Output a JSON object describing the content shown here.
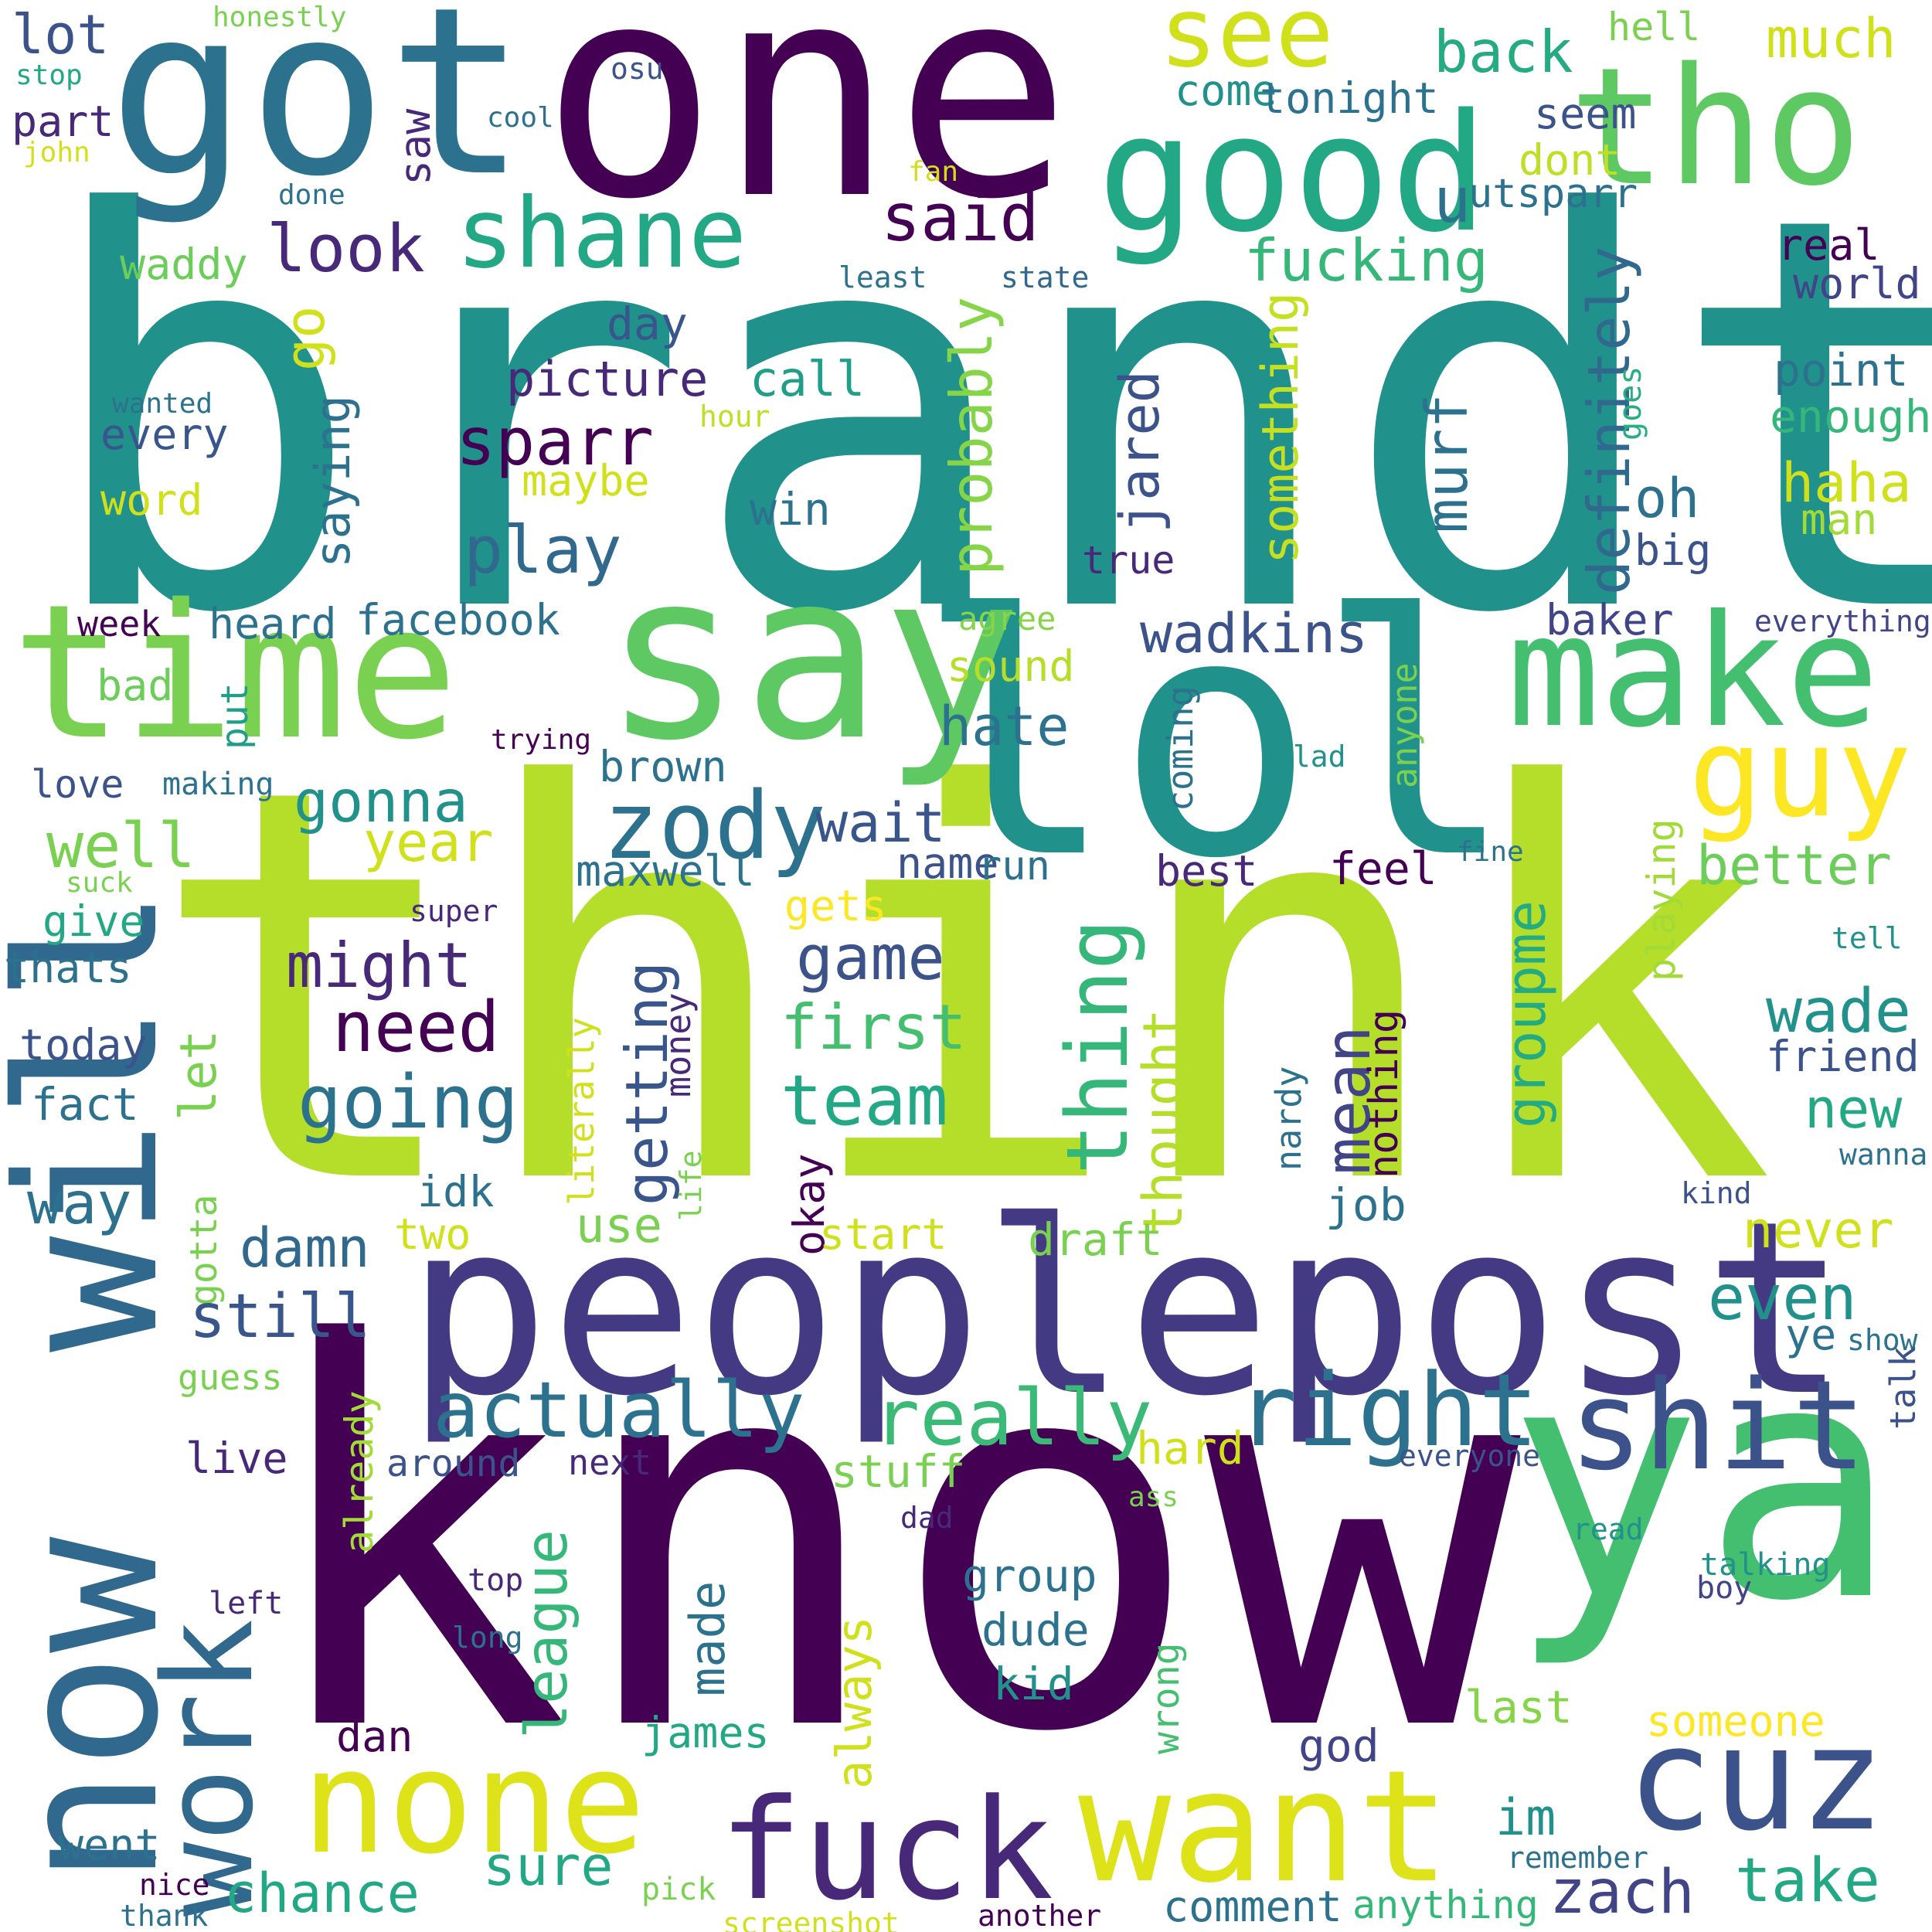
{
  "words": [
    {
      "text": "brandt",
      "color": "#21918c"
    },
    {
      "text": "think",
      "color": "#b5de2b"
    },
    {
      "text": "know",
      "color": "#440154"
    },
    {
      "text": "peoplepost",
      "color": "#443a83"
    },
    {
      "text": "lol",
      "color": "#21918c"
    },
    {
      "text": "one",
      "color": "#440154"
    },
    {
      "text": "got",
      "color": "#2c728e"
    },
    {
      "text": "ya",
      "color": "#44bf70"
    },
    {
      "text": "now",
      "color": "#31688e"
    },
    {
      "text": "will",
      "color": "#31688e"
    },
    {
      "text": "say",
      "color": "#5ec962"
    },
    {
      "text": "time",
      "color": "#7ad151"
    },
    {
      "text": "make",
      "color": "#44bf70"
    },
    {
      "text": "tho",
      "color": "#5ec962"
    },
    {
      "text": "good",
      "color": "#22a884"
    },
    {
      "text": "none",
      "color": "#dde318"
    },
    {
      "text": "want",
      "color": "#dde318"
    },
    {
      "text": "fuck",
      "color": "#482878"
    },
    {
      "text": "cuz",
      "color": "#3b528b"
    },
    {
      "text": "shit",
      "color": "#3b528b"
    },
    {
      "text": "work",
      "color": "#31688e"
    },
    {
      "text": "right",
      "color": "#2c728e"
    },
    {
      "text": "guy",
      "color": "#fde725"
    },
    {
      "text": "shane",
      "color": "#22a884"
    },
    {
      "text": "see",
      "color": "#d0e11c"
    },
    {
      "text": "zody",
      "color": "#2c728e"
    },
    {
      "text": "actually",
      "color": "#2c728e"
    },
    {
      "text": "really",
      "color": "#3aba76"
    },
    {
      "text": "said",
      "color": "#440154"
    },
    {
      "text": "look",
      "color": "#482878"
    },
    {
      "text": "sparr",
      "color": "#440154"
    },
    {
      "text": "play",
      "color": "#31688e"
    },
    {
      "text": "back",
      "color": "#25ab82"
    },
    {
      "text": "much",
      "color": "#d0e11c"
    },
    {
      "text": "fucking",
      "color": "#35b779"
    },
    {
      "text": "come",
      "color": "#21918c"
    },
    {
      "text": "tonight",
      "color": "#2c728e"
    },
    {
      "text": "seem",
      "color": "#3b528b"
    },
    {
      "text": "hell",
      "color": "#7ad151"
    },
    {
      "text": "u",
      "color": "#2c728e"
    },
    {
      "text": "utsparr",
      "color": "#2c728e"
    },
    {
      "text": "dont",
      "color": "#bddf26"
    },
    {
      "text": "real",
      "color": "#440154"
    },
    {
      "text": "world",
      "color": "#414487"
    },
    {
      "text": "point",
      "color": "#2c728e"
    },
    {
      "text": "enough",
      "color": "#35b779"
    },
    {
      "text": "haha",
      "color": "#d0e11c"
    },
    {
      "text": "man",
      "color": "#a2da37"
    },
    {
      "text": "oh",
      "color": "#2c728e"
    },
    {
      "text": "big",
      "color": "#3b528b"
    },
    {
      "text": "definitely",
      "color": "#31688e"
    },
    {
      "text": "goes",
      "color": "#28ae80"
    },
    {
      "text": "murf",
      "color": "#2c728e"
    },
    {
      "text": "something",
      "color": "#c5e021"
    },
    {
      "text": "jared",
      "color": "#3b528b"
    },
    {
      "text": "probably",
      "color": "#86d549"
    },
    {
      "text": "picture",
      "color": "#482878"
    },
    {
      "text": "call",
      "color": "#1f9e89"
    },
    {
      "text": "day",
      "color": "#39568c"
    },
    {
      "text": "go",
      "color": "#d0e11c"
    },
    {
      "text": "saying",
      "color": "#2c728e"
    },
    {
      "text": "maybe",
      "color": "#d0e11c"
    },
    {
      "text": "win",
      "color": "#2c728e"
    },
    {
      "text": "true",
      "color": "#482878"
    },
    {
      "text": "hour",
      "color": "#bddf26"
    },
    {
      "text": "every",
      "color": "#39568c"
    },
    {
      "text": "wanted",
      "color": "#2c728e"
    },
    {
      "text": "word",
      "color": "#d0e11c"
    },
    {
      "text": "waddy",
      "color": "#6ccd5a"
    },
    {
      "text": "least",
      "color": "#2c728e"
    },
    {
      "text": "state",
      "color": "#31688e"
    },
    {
      "text": "lot",
      "color": "#3b528b"
    },
    {
      "text": "stop",
      "color": "#22a884"
    },
    {
      "text": "honestly",
      "color": "#7ad151"
    },
    {
      "text": "osu",
      "color": "#3b528b"
    },
    {
      "text": "cool",
      "color": "#2c728e"
    },
    {
      "text": "part",
      "color": "#482878"
    },
    {
      "text": "john",
      "color": "#d0e11c"
    },
    {
      "text": "saw",
      "color": "#482878"
    },
    {
      "text": "fan",
      "color": "#d0e11c"
    },
    {
      "text": "done",
      "color": "#2c728e"
    },
    {
      "text": "week",
      "color": "#440154"
    },
    {
      "text": "heard",
      "color": "#2c728e"
    },
    {
      "text": "facebook",
      "color": "#2c728e"
    },
    {
      "text": "bad",
      "color": "#6ccd5a"
    },
    {
      "text": "put",
      "color": "#1f9e89"
    },
    {
      "text": "trying",
      "color": "#440154"
    },
    {
      "text": "love",
      "color": "#3b528b"
    },
    {
      "text": "making",
      "color": "#2c728e"
    },
    {
      "text": "gonna",
      "color": "#21918c"
    },
    {
      "text": "well",
      "color": "#7ad151"
    },
    {
      "text": "year",
      "color": "#d0e11c"
    },
    {
      "text": "brown",
      "color": "#2c728e"
    },
    {
      "text": "wait",
      "color": "#39568c"
    },
    {
      "text": "name",
      "color": "#3b528b"
    },
    {
      "text": "run",
      "color": "#2c728e"
    },
    {
      "text": "maxwell",
      "color": "#2c728e"
    },
    {
      "text": "gets",
      "color": "#fde725"
    },
    {
      "text": "hate",
      "color": "#2c728e"
    },
    {
      "text": "sound",
      "color": "#b5de2b"
    },
    {
      "text": "agree",
      "color": "#86d549"
    },
    {
      "text": "wadkins",
      "color": "#3b528b"
    },
    {
      "text": "coming",
      "color": "#2c728e"
    },
    {
      "text": "anyone",
      "color": "#7ad151"
    },
    {
      "text": "best",
      "color": "#482878"
    },
    {
      "text": "feel",
      "color": "#440154"
    },
    {
      "text": "glad",
      "color": "#21918c"
    },
    {
      "text": "baker",
      "color": "#414487"
    },
    {
      "text": "everything",
      "color": "#414487"
    },
    {
      "text": "better",
      "color": "#6ccd5a"
    },
    {
      "text": "fine",
      "color": "#2c728e"
    },
    {
      "text": "playing",
      "color": "#a2da37"
    },
    {
      "text": "tell",
      "color": "#21918c"
    },
    {
      "text": "give",
      "color": "#22a884"
    },
    {
      "text": "suck",
      "color": "#7ad151"
    },
    {
      "text": "super",
      "color": "#482878"
    },
    {
      "text": "thats",
      "color": "#2c728e"
    },
    {
      "text": "today",
      "color": "#3b528b"
    },
    {
      "text": "fact",
      "color": "#2c728e"
    },
    {
      "text": "let",
      "color": "#7ad151"
    },
    {
      "text": "might",
      "color": "#482878"
    },
    {
      "text": "need",
      "color": "#440154"
    },
    {
      "text": "going",
      "color": "#2c728e"
    },
    {
      "text": "game",
      "color": "#3b528b"
    },
    {
      "text": "first",
      "color": "#44bf70"
    },
    {
      "text": "team",
      "color": "#22a884"
    },
    {
      "text": "thing",
      "color": "#35b779"
    },
    {
      "text": "thought",
      "color": "#b5de2b"
    },
    {
      "text": "mean",
      "color": "#414487"
    },
    {
      "text": "groupme",
      "color": "#25ab82"
    },
    {
      "text": "wade",
      "color": "#21918c"
    },
    {
      "text": "friend",
      "color": "#3b528b"
    },
    {
      "text": "new",
      "color": "#22a884"
    },
    {
      "text": "wanna",
      "color": "#2c728e"
    },
    {
      "text": "kind",
      "color": "#3b528b"
    },
    {
      "text": "way",
      "color": "#2c728e"
    },
    {
      "text": "gotta",
      "color": "#7ad151"
    },
    {
      "text": "idk",
      "color": "#2c728e"
    },
    {
      "text": "two",
      "color": "#d0e11c"
    },
    {
      "text": "damn",
      "color": "#31688e"
    },
    {
      "text": "still",
      "color": "#39568c"
    },
    {
      "text": "getting",
      "color": "#39568c"
    },
    {
      "text": "literally",
      "color": "#d0e11c"
    },
    {
      "text": "money",
      "color": "#482878"
    },
    {
      "text": "life",
      "color": "#7ad151"
    },
    {
      "text": "use",
      "color": "#7ad151"
    },
    {
      "text": "okay",
      "color": "#440154"
    },
    {
      "text": "start",
      "color": "#d0e11c"
    },
    {
      "text": "draft",
      "color": "#7ad151"
    },
    {
      "text": "nardy",
      "color": "#2c728e"
    },
    {
      "text": "nothing",
      "color": "#440154"
    },
    {
      "text": "job",
      "color": "#2c728e"
    },
    {
      "text": "never",
      "color": "#d0e11c"
    },
    {
      "text": "even",
      "color": "#21918c"
    },
    {
      "text": "ye",
      "color": "#2c728e"
    },
    {
      "text": "show",
      "color": "#2c728e"
    },
    {
      "text": "guess",
      "color": "#7ad151"
    },
    {
      "text": "live",
      "color": "#482878"
    },
    {
      "text": "around",
      "color": "#3b528b"
    },
    {
      "text": "next",
      "color": "#482878"
    },
    {
      "text": "already",
      "color": "#a2da37"
    },
    {
      "text": "hard",
      "color": "#d0e11c"
    },
    {
      "text": "stuff",
      "color": "#7ad151"
    },
    {
      "text": "everyone",
      "color": "#3b528b"
    },
    {
      "text": "talk",
      "color": "#3b528b"
    },
    {
      "text": "ass",
      "color": "#7ad151"
    },
    {
      "text": "dad",
      "color": "#482878"
    },
    {
      "text": "read",
      "color": "#21918c"
    },
    {
      "text": "talking",
      "color": "#21918c"
    },
    {
      "text": "boy",
      "color": "#414487"
    },
    {
      "text": "league",
      "color": "#35b779"
    },
    {
      "text": "made",
      "color": "#2c728e"
    },
    {
      "text": "always",
      "color": "#d0e11c"
    },
    {
      "text": "group",
      "color": "#2c728e"
    },
    {
      "text": "dude",
      "color": "#2c728e"
    },
    {
      "text": "kid",
      "color": "#21918c"
    },
    {
      "text": "wrong",
      "color": "#44bf70"
    },
    {
      "text": "top",
      "color": "#482878"
    },
    {
      "text": "left",
      "color": "#482878"
    },
    {
      "text": "long",
      "color": "#2c728e"
    },
    {
      "text": "dan",
      "color": "#440154"
    },
    {
      "text": "james",
      "color": "#22a884"
    },
    {
      "text": "god",
      "color": "#414487"
    },
    {
      "text": "last",
      "color": "#86d549"
    },
    {
      "text": "someone",
      "color": "#fde725"
    },
    {
      "text": "im",
      "color": "#21918c"
    },
    {
      "text": "remember",
      "color": "#2c728e"
    },
    {
      "text": "went",
      "color": "#2c728e"
    },
    {
      "text": "nice",
      "color": "#440154"
    },
    {
      "text": "thank",
      "color": "#2c728e"
    },
    {
      "text": "chance",
      "color": "#22a884"
    },
    {
      "text": "sure",
      "color": "#22a884"
    },
    {
      "text": "pick",
      "color": "#7ad151"
    },
    {
      "text": "screenshot",
      "color": "#d0e11c"
    },
    {
      "text": "another",
      "color": "#440154"
    },
    {
      "text": "comment",
      "color": "#2c728e"
    },
    {
      "text": "anything",
      "color": "#35b779"
    },
    {
      "text": "zach",
      "color": "#414487"
    },
    {
      "text": "take",
      "color": "#22a884"
    }
  ]
}
